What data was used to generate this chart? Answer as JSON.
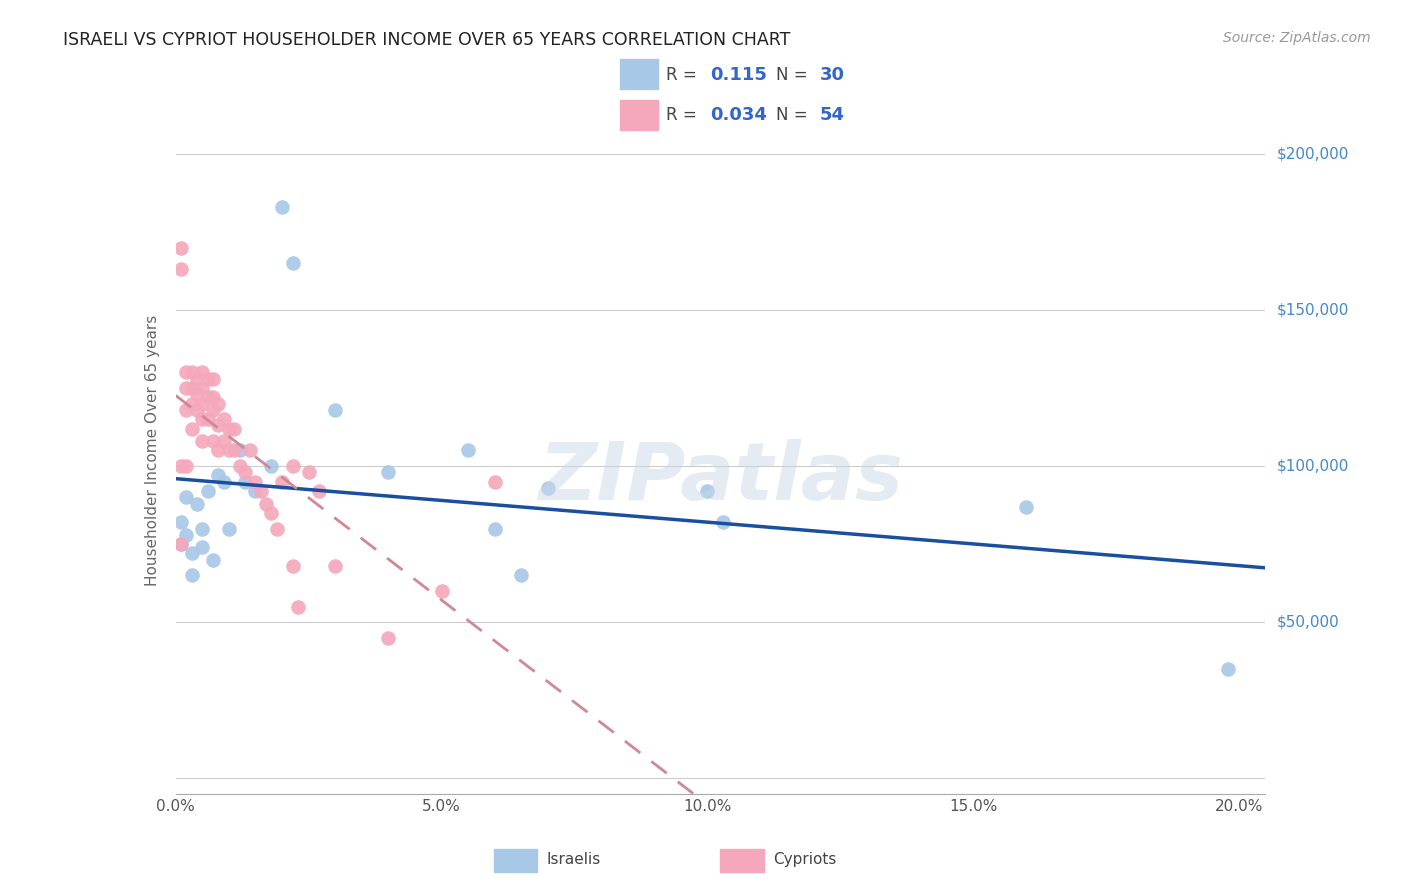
{
  "title": "ISRAELI VS CYPRIOT HOUSEHOLDER INCOME OVER 65 YEARS CORRELATION CHART",
  "source": "Source: ZipAtlas.com",
  "ylabel": "Householder Income Over 65 years",
  "xlabel_ticks": [
    "0.0%",
    "5.0%",
    "10.0%",
    "15.0%",
    "20.0%"
  ],
  "xlabel_vals": [
    0.0,
    0.05,
    0.1,
    0.15,
    0.2
  ],
  "ylabel_ticks": [
    0,
    50000,
    100000,
    150000,
    200000
  ],
  "ylabel_labels": [
    "",
    "$50,000",
    "$100,000",
    "$150,000",
    "$200,000"
  ],
  "xlim": [
    0.0,
    0.205
  ],
  "ylim": [
    -5000,
    215000
  ],
  "israeli_R": "0.115",
  "israeli_N": "30",
  "cypriot_R": "0.034",
  "cypriot_N": "54",
  "israeli_color": "#a8c8e8",
  "cypriot_color": "#f5a8bc",
  "israeli_line_color": "#1a4fa0",
  "cypriot_line_color": "#d08898",
  "watermark": "ZIPatlas",
  "israeli_x": [
    0.001,
    0.001,
    0.002,
    0.002,
    0.003,
    0.003,
    0.004,
    0.005,
    0.005,
    0.006,
    0.007,
    0.008,
    0.009,
    0.01,
    0.012,
    0.013,
    0.015,
    0.018,
    0.02,
    0.022,
    0.03,
    0.04,
    0.055,
    0.06,
    0.065,
    0.07,
    0.1,
    0.103,
    0.16,
    0.198
  ],
  "israeli_y": [
    82000,
    75000,
    90000,
    78000,
    72000,
    65000,
    88000,
    80000,
    74000,
    92000,
    70000,
    97000,
    95000,
    80000,
    105000,
    95000,
    92000,
    100000,
    183000,
    165000,
    118000,
    98000,
    105000,
    80000,
    65000,
    93000,
    92000,
    82000,
    87000,
    35000
  ],
  "cypriot_x": [
    0.001,
    0.001,
    0.001,
    0.001,
    0.002,
    0.002,
    0.002,
    0.002,
    0.003,
    0.003,
    0.003,
    0.003,
    0.004,
    0.004,
    0.004,
    0.005,
    0.005,
    0.005,
    0.005,
    0.005,
    0.006,
    0.006,
    0.006,
    0.007,
    0.007,
    0.007,
    0.007,
    0.008,
    0.008,
    0.008,
    0.009,
    0.009,
    0.01,
    0.01,
    0.011,
    0.011,
    0.012,
    0.013,
    0.014,
    0.015,
    0.016,
    0.017,
    0.018,
    0.019,
    0.02,
    0.022,
    0.022,
    0.023,
    0.025,
    0.027,
    0.03,
    0.04,
    0.05,
    0.06
  ],
  "cypriot_y": [
    170000,
    163000,
    100000,
    75000,
    130000,
    125000,
    118000,
    100000,
    130000,
    125000,
    120000,
    112000,
    128000,
    123000,
    118000,
    130000,
    125000,
    120000,
    115000,
    108000,
    128000,
    122000,
    115000,
    128000,
    122000,
    118000,
    108000,
    120000,
    113000,
    105000,
    115000,
    108000,
    112000,
    105000,
    112000,
    105000,
    100000,
    98000,
    105000,
    95000,
    92000,
    88000,
    85000,
    80000,
    95000,
    100000,
    68000,
    55000,
    98000,
    92000,
    68000,
    45000,
    60000,
    95000
  ]
}
